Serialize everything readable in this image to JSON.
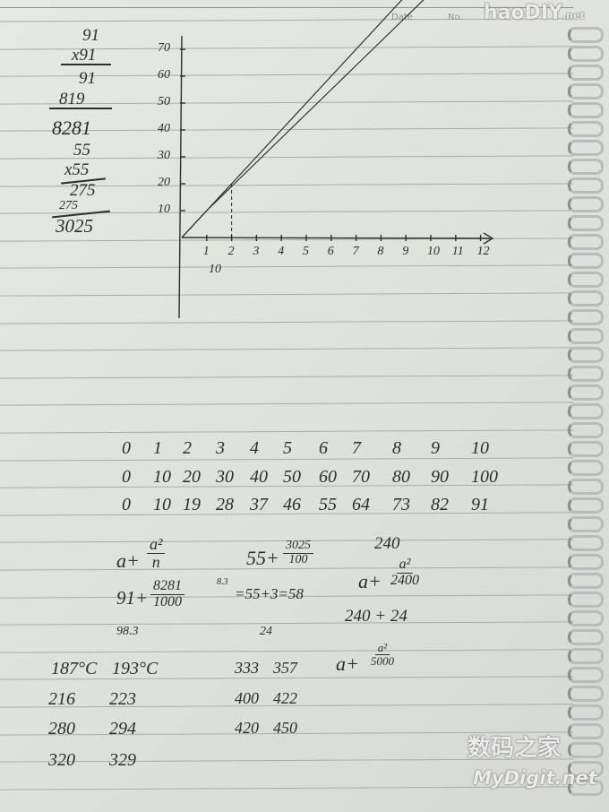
{
  "header": {
    "date_label": "Date.",
    "no_label": "No."
  },
  "multiplication": {
    "a": [
      "91",
      "x91",
      "91",
      "819",
      "8281"
    ],
    "b": [
      "55",
      "x55",
      "275",
      "275",
      "3025"
    ]
  },
  "graph": {
    "y_ticks": [
      "10",
      "20",
      "30",
      "40",
      "50",
      "60",
      "70"
    ],
    "x_ticks": [
      "1",
      "2",
      "3",
      "4",
      "5",
      "6",
      "7",
      "8",
      "9",
      "10",
      "11",
      "12"
    ],
    "x_sub_label": "10",
    "x": [
      0,
      1,
      2,
      3,
      4,
      5,
      6,
      7,
      8,
      9,
      10
    ],
    "line_linear": [
      0,
      10,
      20,
      30,
      40,
      50,
      60,
      70,
      80,
      90,
      100
    ],
    "line_curve": [
      0,
      10,
      19,
      28,
      37,
      46,
      55,
      64,
      73,
      82,
      91
    ]
  },
  "table": {
    "rows": [
      [
        "0",
        "1",
        "2",
        "3",
        "4",
        "5",
        "6",
        "7",
        "8",
        "9",
        "10"
      ],
      [
        "0",
        "10",
        "20",
        "30",
        "40",
        "50",
        "60",
        "70",
        "80",
        "90",
        "100"
      ],
      [
        "0",
        "10",
        "19",
        "28",
        "37",
        "46",
        "55",
        "64",
        "73",
        "82",
        "91"
      ]
    ]
  },
  "formulas": {
    "f1_a": "a+",
    "f1_num": "a²",
    "f1_den": "n",
    "f2_a": "55+",
    "f2_num": "3025",
    "f2_den": "100",
    "f3_top": "240",
    "f3_a": "a+",
    "f3_num": "a²",
    "f3_den": "2400",
    "f4_a": "91+",
    "f4_num": "8281",
    "f4_den": "1000",
    "f4_note": "8.3",
    "f4_eq": "=55+3=58",
    "f5": "240 + 24",
    "f6": "98.3",
    "f7": "24",
    "f8_a": "a+",
    "f8_num": "a²",
    "f8_den": "5000"
  },
  "temps": {
    "rows": [
      [
        "187°C",
        "193°C",
        "333",
        "357"
      ],
      [
        "216",
        "223",
        "400",
        "422"
      ],
      [
        "280",
        "294",
        "420",
        "450"
      ],
      [
        "320",
        "329",
        "",
        ""
      ]
    ]
  },
  "watermarks": {
    "top": "haoDIY",
    "top_suffix": ".net",
    "bottom_cn": "数码之家",
    "bottom_en": "MyDigit.net"
  }
}
